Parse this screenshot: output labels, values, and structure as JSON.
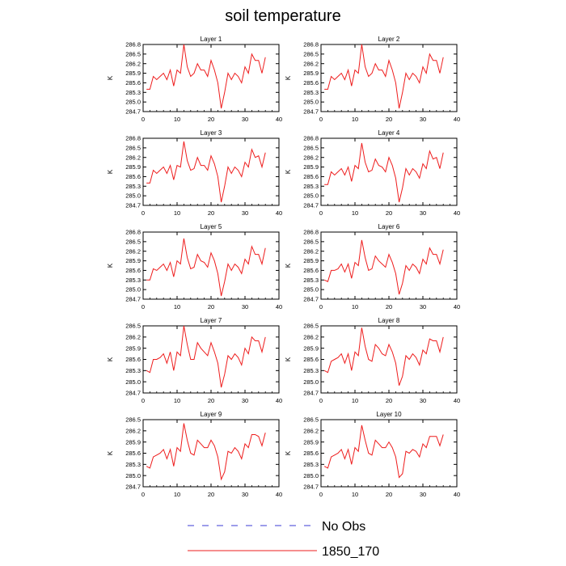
{
  "title": "soil temperature",
  "legend": [
    {
      "label": "No Obs",
      "color": "#3b3bd6",
      "dash": true
    },
    {
      "label": "1850_170",
      "color": "#ee1c1c",
      "dash": false
    }
  ],
  "chart_data": [
    {
      "type": "line",
      "title": "Layer 1",
      "ylabel": "K",
      "xlim": [
        0,
        40
      ],
      "ylim": [
        284.7,
        286.8
      ],
      "xticks": [
        0,
        10,
        20,
        30,
        40
      ],
      "yticks": [
        "284.7",
        "285.0",
        "285.3",
        "285.6",
        "285.9",
        "286.2",
        "286.5",
        "286.8"
      ],
      "x": [
        1,
        2,
        3,
        4,
        5,
        6,
        7,
        8,
        9,
        10,
        11,
        12,
        13,
        14,
        15,
        16,
        17,
        18,
        19,
        20,
        21,
        22,
        23,
        24,
        25,
        26,
        27,
        28,
        29,
        30,
        31,
        32,
        33,
        34,
        35,
        36
      ],
      "series": [
        {
          "name": "1850_170",
          "values": [
            285.4,
            285.4,
            285.8,
            285.7,
            285.8,
            285.9,
            285.7,
            286.0,
            285.5,
            286.0,
            285.9,
            286.8,
            286.1,
            285.8,
            285.9,
            286.2,
            286.0,
            286.0,
            285.8,
            286.3,
            286.0,
            285.6,
            284.8,
            285.3,
            285.9,
            285.7,
            285.9,
            285.8,
            285.6,
            286.1,
            285.9,
            286.5,
            286.3,
            286.3,
            285.9,
            286.4
          ]
        }
      ]
    },
    {
      "type": "line",
      "title": "Layer 2",
      "ylabel": "K",
      "xlim": [
        0,
        40
      ],
      "ylim": [
        284.7,
        286.8
      ],
      "xticks": [
        0,
        10,
        20,
        30,
        40
      ],
      "yticks": [
        "284.7",
        "285.0",
        "285.3",
        "285.6",
        "285.9",
        "286.2",
        "286.5",
        "286.8"
      ],
      "x": [
        1,
        2,
        3,
        4,
        5,
        6,
        7,
        8,
        9,
        10,
        11,
        12,
        13,
        14,
        15,
        16,
        17,
        18,
        19,
        20,
        21,
        22,
        23,
        24,
        25,
        26,
        27,
        28,
        29,
        30,
        31,
        32,
        33,
        34,
        35,
        36
      ],
      "series": [
        {
          "name": "1850_170",
          "values": [
            285.4,
            285.4,
            285.8,
            285.7,
            285.8,
            285.9,
            285.7,
            286.0,
            285.5,
            286.0,
            285.9,
            286.8,
            286.1,
            285.8,
            285.9,
            286.2,
            286.0,
            286.0,
            285.8,
            286.3,
            286.0,
            285.6,
            284.8,
            285.3,
            285.9,
            285.7,
            285.9,
            285.8,
            285.6,
            286.1,
            285.9,
            286.5,
            286.3,
            286.3,
            285.9,
            286.4
          ]
        }
      ]
    },
    {
      "type": "line",
      "title": "Layer 3",
      "ylabel": "K",
      "xlim": [
        0,
        40
      ],
      "ylim": [
        284.7,
        286.8
      ],
      "xticks": [
        0,
        10,
        20,
        30,
        40
      ],
      "yticks": [
        "284.7",
        "285.0",
        "285.3",
        "285.6",
        "285.9",
        "286.2",
        "286.5",
        "286.8"
      ],
      "x": [
        1,
        2,
        3,
        4,
        5,
        6,
        7,
        8,
        9,
        10,
        11,
        12,
        13,
        14,
        15,
        16,
        17,
        18,
        19,
        20,
        21,
        22,
        23,
        24,
        25,
        26,
        27,
        28,
        29,
        30,
        31,
        32,
        33,
        34,
        35,
        36
      ],
      "series": [
        {
          "name": "1850_170",
          "values": [
            285.4,
            285.4,
            285.8,
            285.7,
            285.8,
            285.9,
            285.7,
            285.95,
            285.5,
            285.95,
            285.9,
            286.7,
            286.1,
            285.8,
            285.85,
            286.2,
            285.95,
            285.95,
            285.8,
            286.25,
            286.0,
            285.6,
            284.8,
            285.3,
            285.9,
            285.7,
            285.9,
            285.8,
            285.6,
            286.05,
            285.9,
            286.45,
            286.2,
            286.25,
            285.9,
            286.35
          ]
        }
      ]
    },
    {
      "type": "line",
      "title": "Layer 4",
      "ylabel": "K",
      "xlim": [
        0,
        40
      ],
      "ylim": [
        284.7,
        286.8
      ],
      "xticks": [
        0,
        10,
        20,
        30,
        40
      ],
      "yticks": [
        "284.7",
        "285.0",
        "285.3",
        "285.6",
        "285.9",
        "286.2",
        "286.5",
        "286.8"
      ],
      "x": [
        1,
        2,
        3,
        4,
        5,
        6,
        7,
        8,
        9,
        10,
        11,
        12,
        13,
        14,
        15,
        16,
        17,
        18,
        19,
        20,
        21,
        22,
        23,
        24,
        25,
        26,
        27,
        28,
        29,
        30,
        31,
        32,
        33,
        34,
        35,
        36
      ],
      "series": [
        {
          "name": "1850_170",
          "values": [
            285.35,
            285.35,
            285.75,
            285.65,
            285.75,
            285.85,
            285.65,
            285.9,
            285.45,
            285.95,
            285.85,
            286.65,
            286.05,
            285.75,
            285.8,
            286.15,
            285.95,
            285.9,
            285.75,
            286.2,
            285.95,
            285.55,
            284.8,
            285.25,
            285.85,
            285.65,
            285.85,
            285.75,
            285.55,
            286.0,
            285.85,
            286.4,
            286.15,
            286.2,
            285.85,
            286.35
          ]
        }
      ]
    },
    {
      "type": "line",
      "title": "Layer 5",
      "ylabel": "K",
      "xlim": [
        0,
        40
      ],
      "ylim": [
        284.7,
        286.8
      ],
      "xticks": [
        0,
        10,
        20,
        30,
        40
      ],
      "yticks": [
        "284.7",
        "285.0",
        "285.3",
        "285.6",
        "285.9",
        "286.2",
        "286.5",
        "286.8"
      ],
      "x": [
        1,
        2,
        3,
        4,
        5,
        6,
        7,
        8,
        9,
        10,
        11,
        12,
        13,
        14,
        15,
        16,
        17,
        18,
        19,
        20,
        21,
        22,
        23,
        24,
        25,
        26,
        27,
        28,
        29,
        30,
        31,
        32,
        33,
        34,
        35,
        36
      ],
      "series": [
        {
          "name": "1850_170",
          "values": [
            285.3,
            285.3,
            285.65,
            285.6,
            285.7,
            285.8,
            285.6,
            285.85,
            285.4,
            285.9,
            285.8,
            286.6,
            286.0,
            285.65,
            285.7,
            286.1,
            285.9,
            285.85,
            285.7,
            286.15,
            285.9,
            285.5,
            284.8,
            285.25,
            285.8,
            285.6,
            285.8,
            285.7,
            285.5,
            285.95,
            285.8,
            286.35,
            286.1,
            286.1,
            285.8,
            286.3
          ]
        }
      ]
    },
    {
      "type": "line",
      "title": "Layer 6",
      "ylabel": "K",
      "xlim": [
        0,
        40
      ],
      "ylim": [
        284.7,
        286.8
      ],
      "xticks": [
        0,
        10,
        20,
        30,
        40
      ],
      "yticks": [
        "284.7",
        "285.0",
        "285.3",
        "285.6",
        "285.9",
        "286.2",
        "286.5",
        "286.8"
      ],
      "x": [
        1,
        2,
        3,
        4,
        5,
        6,
        7,
        8,
        9,
        10,
        11,
        12,
        13,
        14,
        15,
        16,
        17,
        18,
        19,
        20,
        21,
        22,
        23,
        24,
        25,
        26,
        27,
        28,
        29,
        30,
        31,
        32,
        33,
        34,
        35,
        36
      ],
      "series": [
        {
          "name": "1850_170",
          "values": [
            285.3,
            285.25,
            285.6,
            285.6,
            285.65,
            285.8,
            285.55,
            285.8,
            285.35,
            285.85,
            285.75,
            286.55,
            286.0,
            285.6,
            285.65,
            286.05,
            285.9,
            285.8,
            285.7,
            286.1,
            285.85,
            285.5,
            284.85,
            285.2,
            285.75,
            285.6,
            285.8,
            285.7,
            285.5,
            285.95,
            285.8,
            286.3,
            286.1,
            286.1,
            285.8,
            286.25
          ]
        }
      ]
    },
    {
      "type": "line",
      "title": "Layer 7",
      "ylabel": "K",
      "xlim": [
        0,
        40
      ],
      "ylim": [
        284.7,
        286.5
      ],
      "xticks": [
        0,
        10,
        20,
        30,
        40
      ],
      "yticks": [
        "284.7",
        "285.0",
        "285.3",
        "285.6",
        "285.9",
        "286.2",
        "286.5"
      ],
      "x": [
        1,
        2,
        3,
        4,
        5,
        6,
        7,
        8,
        9,
        10,
        11,
        12,
        13,
        14,
        15,
        16,
        17,
        18,
        19,
        20,
        21,
        22,
        23,
        24,
        25,
        26,
        27,
        28,
        29,
        30,
        31,
        32,
        33,
        34,
        35,
        36
      ],
      "series": [
        {
          "name": "1850_170",
          "values": [
            285.3,
            285.25,
            285.6,
            285.6,
            285.65,
            285.75,
            285.5,
            285.8,
            285.3,
            285.8,
            285.7,
            286.5,
            286.0,
            285.6,
            285.6,
            286.05,
            285.9,
            285.8,
            285.7,
            286.05,
            285.8,
            285.5,
            284.85,
            285.2,
            285.7,
            285.6,
            285.75,
            285.65,
            285.45,
            285.9,
            285.75,
            286.2,
            286.1,
            286.1,
            285.8,
            286.2
          ]
        }
      ]
    },
    {
      "type": "line",
      "title": "Layer 8",
      "ylabel": "K",
      "xlim": [
        0,
        40
      ],
      "ylim": [
        284.7,
        286.5
      ],
      "xticks": [
        0,
        10,
        20,
        30,
        40
      ],
      "yticks": [
        "284.7",
        "285.0",
        "285.3",
        "285.6",
        "285.9",
        "286.2",
        "286.5"
      ],
      "x": [
        1,
        2,
        3,
        4,
        5,
        6,
        7,
        8,
        9,
        10,
        11,
        12,
        13,
        14,
        15,
        16,
        17,
        18,
        19,
        20,
        21,
        22,
        23,
        24,
        25,
        26,
        27,
        28,
        29,
        30,
        31,
        32,
        33,
        34,
        35,
        36
      ],
      "series": [
        {
          "name": "1850_170",
          "values": [
            285.3,
            285.25,
            285.55,
            285.6,
            285.65,
            285.75,
            285.5,
            285.75,
            285.3,
            285.8,
            285.7,
            286.45,
            285.95,
            285.6,
            285.55,
            286.0,
            285.9,
            285.75,
            285.7,
            286.0,
            285.8,
            285.5,
            284.9,
            285.15,
            285.7,
            285.6,
            285.75,
            285.65,
            285.45,
            285.85,
            285.75,
            286.15,
            286.1,
            286.1,
            285.8,
            286.2
          ]
        }
      ]
    },
    {
      "type": "line",
      "title": "Layer 9",
      "ylabel": "K",
      "xlim": [
        0,
        40
      ],
      "ylim": [
        284.7,
        286.5
      ],
      "xticks": [
        0,
        10,
        20,
        30,
        40
      ],
      "yticks": [
        "284.7",
        "285.0",
        "285.3",
        "285.6",
        "285.9",
        "286.2",
        "286.5"
      ],
      "x": [
        1,
        2,
        3,
        4,
        5,
        6,
        7,
        8,
        9,
        10,
        11,
        12,
        13,
        14,
        15,
        16,
        17,
        18,
        19,
        20,
        21,
        22,
        23,
        24,
        25,
        26,
        27,
        28,
        29,
        30,
        31,
        32,
        33,
        34,
        35,
        36
      ],
      "series": [
        {
          "name": "1850_170",
          "values": [
            285.25,
            285.2,
            285.5,
            285.55,
            285.6,
            285.7,
            285.45,
            285.7,
            285.25,
            285.75,
            285.65,
            286.4,
            285.95,
            285.6,
            285.55,
            285.95,
            285.85,
            285.75,
            285.75,
            285.95,
            285.8,
            285.5,
            284.9,
            285.1,
            285.65,
            285.6,
            285.75,
            285.65,
            285.45,
            285.85,
            285.75,
            286.1,
            286.1,
            286.05,
            285.8,
            286.15
          ]
        }
      ]
    },
    {
      "type": "line",
      "title": "Layer 10",
      "ylabel": "K",
      "xlim": [
        0,
        40
      ],
      "ylim": [
        284.7,
        286.5
      ],
      "xticks": [
        0,
        10,
        20,
        30,
        40
      ],
      "yticks": [
        "284.7",
        "285.0",
        "285.3",
        "285.6",
        "285.9",
        "286.2",
        "286.5"
      ],
      "x": [
        1,
        2,
        3,
        4,
        5,
        6,
        7,
        8,
        9,
        10,
        11,
        12,
        13,
        14,
        15,
        16,
        17,
        18,
        19,
        20,
        21,
        22,
        23,
        24,
        25,
        26,
        27,
        28,
        29,
        30,
        31,
        32,
        33,
        34,
        35,
        36
      ],
      "series": [
        {
          "name": "1850_170",
          "values": [
            285.25,
            285.2,
            285.5,
            285.55,
            285.6,
            285.7,
            285.45,
            285.7,
            285.3,
            285.75,
            285.65,
            286.35,
            285.95,
            285.6,
            285.55,
            285.95,
            285.85,
            285.75,
            285.75,
            285.9,
            285.75,
            285.5,
            284.95,
            285.05,
            285.65,
            285.6,
            285.7,
            285.65,
            285.5,
            285.85,
            285.75,
            286.05,
            286.05,
            286.05,
            285.8,
            286.1
          ]
        }
      ]
    }
  ]
}
